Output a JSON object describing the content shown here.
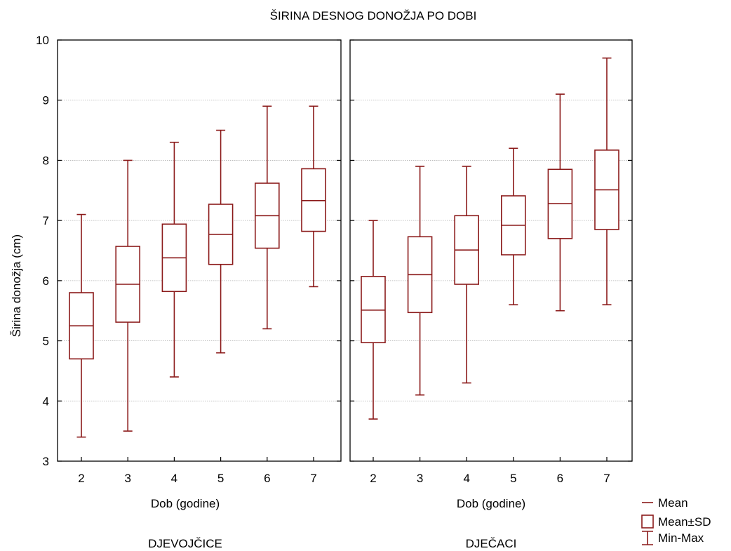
{
  "chart_data": {
    "type": "box",
    "title": "ŠIRINA DESNOG DONOŽJA PO DOBI",
    "ylabel": "Širina donožja (cm)",
    "ylim": [
      3,
      10
    ],
    "yticks": [
      3,
      4,
      5,
      6,
      7,
      8,
      9,
      10
    ],
    "grid": true,
    "series_color": "#8B1A1A",
    "grid_color": "#b3b3b3",
    "legend": {
      "position": "bottom-right",
      "items": [
        {
          "label": "Mean",
          "symbol": "mean-line"
        },
        {
          "label": "Mean±SD",
          "symbol": "box"
        },
        {
          "label": "Min-Max",
          "symbol": "whisker"
        }
      ]
    },
    "panels": [
      {
        "group_label": "DJEVOJČICE",
        "xlabel": "Dob (godine)",
        "categories": [
          "2",
          "3",
          "4",
          "5",
          "6",
          "7"
        ],
        "mean": [
          5.25,
          5.94,
          6.38,
          6.77,
          7.08,
          7.33
        ],
        "sd_low": [
          4.7,
          5.31,
          5.82,
          6.27,
          6.54,
          6.82
        ],
        "sd_high": [
          5.8,
          6.57,
          6.94,
          7.27,
          7.62,
          7.86
        ],
        "min": [
          3.4,
          3.5,
          4.4,
          4.8,
          5.2,
          5.9
        ],
        "max": [
          7.1,
          8.0,
          8.3,
          8.5,
          8.9,
          8.9
        ]
      },
      {
        "group_label": "DJEČACI",
        "xlabel": "Dob (godine)",
        "categories": [
          "2",
          "3",
          "4",
          "5",
          "6",
          "7"
        ],
        "mean": [
          5.51,
          6.1,
          6.51,
          6.92,
          7.28,
          7.51
        ],
        "sd_low": [
          4.97,
          5.47,
          5.94,
          6.43,
          6.7,
          6.85
        ],
        "sd_high": [
          6.07,
          6.73,
          7.08,
          7.41,
          7.85,
          8.17
        ],
        "min": [
          3.7,
          4.1,
          4.3,
          5.6,
          5.5,
          5.6
        ],
        "max": [
          7.0,
          7.9,
          7.9,
          8.2,
          9.1,
          9.7
        ]
      }
    ]
  }
}
